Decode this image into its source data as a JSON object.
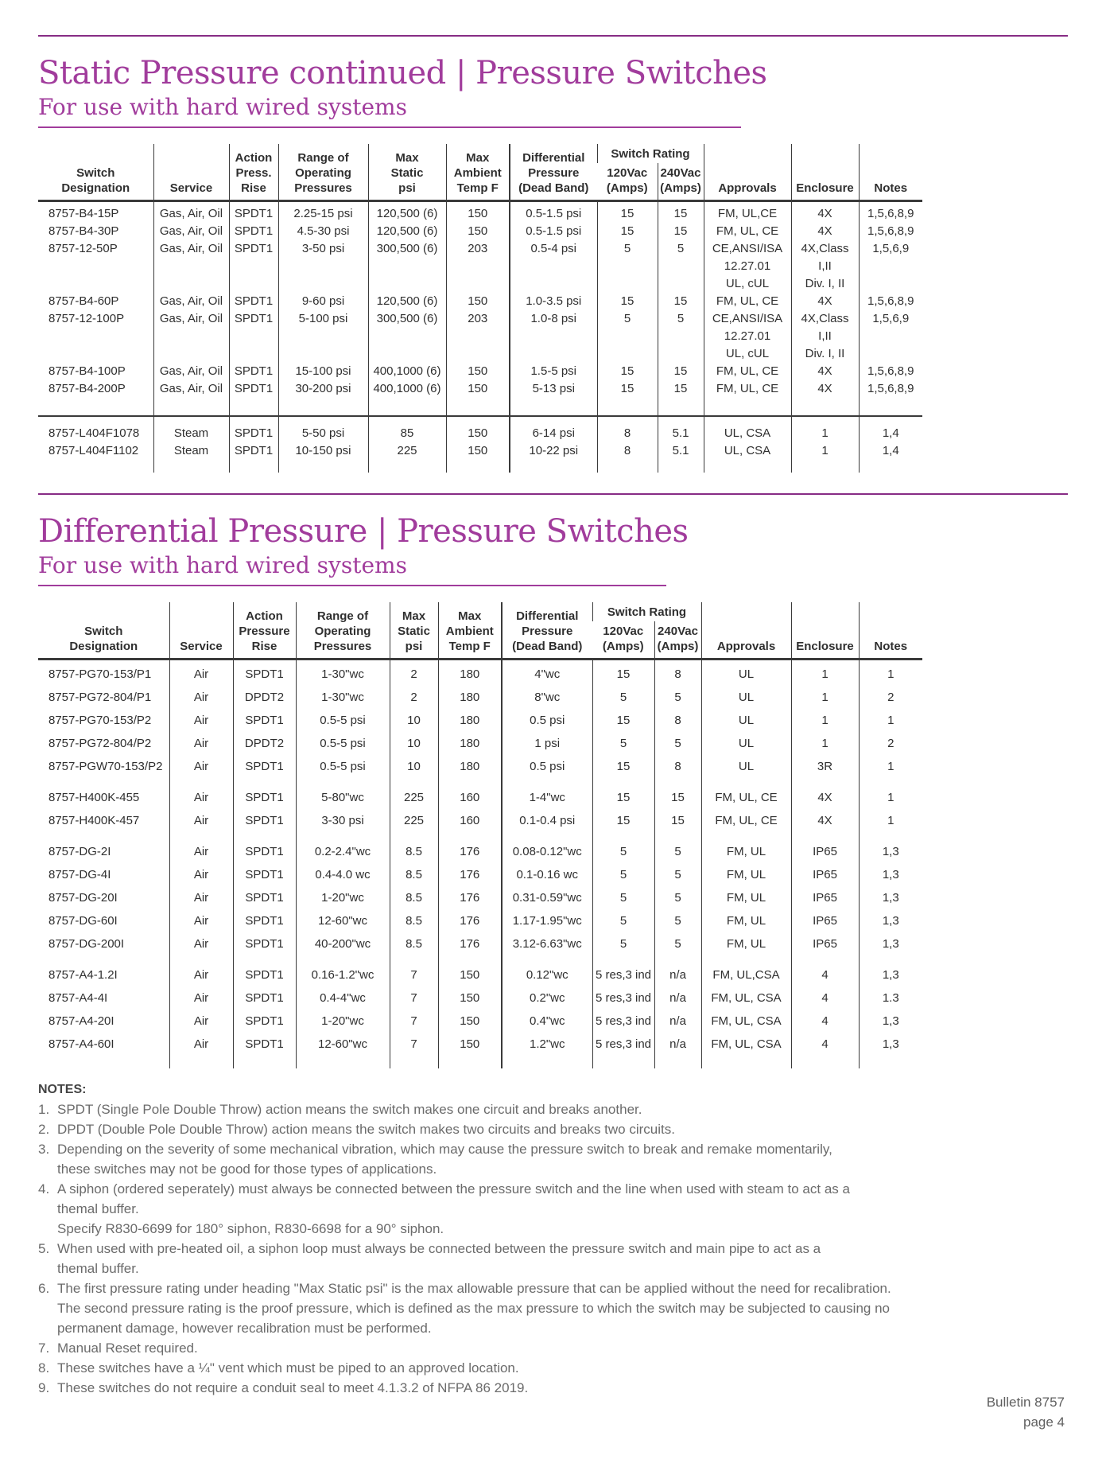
{
  "page": {
    "section1": {
      "title": "Static Pressure continued | Pressure Switches",
      "subtitle": "For use with hard wired systems"
    },
    "section2": {
      "title": "Differential Pressure | Pressure Switches",
      "subtitle": "For use with hard wired systems"
    },
    "footer": {
      "bulletin": "Bulletin 8757",
      "page": "page 4"
    },
    "colors": {
      "accent": "#a13c9c",
      "rule": "#872c85",
      "table_line": "#3a3a3a"
    }
  },
  "table1": {
    "headers": {
      "switch_designation": "Switch\nDesignation",
      "service": "Service",
      "action": "Action\nPress.\nRise",
      "range": "Range of\nOperating\nPressures",
      "max_static": "Max\nStatic\npsi",
      "max_ambient": "Max\nAmbient\nTemp F",
      "diff_pressure": "Differential\nPressure\n(Dead Band)",
      "switch_rating": "Switch Rating",
      "v120": "120Vac\n(Amps)",
      "v240": "240Vac\n(Amps)",
      "approvals": "Approvals",
      "enclosure": "Enclosure",
      "notes": "Notes"
    },
    "blocks": [
      {
        "pad_bottom": true,
        "rows": [
          [
            "8757-B4-15P",
            "Gas, Air, Oil",
            "SPDT1",
            "2.25-15 psi",
            "120,500 (6)",
            "150",
            "0.5-1.5 psi",
            "15",
            "15",
            "FM, UL,CE",
            "4X",
            "1,5,6,8,9"
          ],
          [
            "8757-B4-30P",
            "Gas, Air, Oil",
            "SPDT1",
            "4.5-30 psi",
            "120,500 (6)",
            "150",
            "0.5-1.5 psi",
            "15",
            "15",
            "FM, UL, CE",
            "4X",
            "1,5,6,8,9"
          ],
          [
            "8757-12-50P",
            "Gas, Air, Oil",
            "SPDT1",
            "3-50 psi",
            "300,500 (6)",
            "203",
            "0.5-4 psi",
            "5",
            "5",
            "CE,ANSI/ISA\n12.27.01\nUL, cUL",
            "4X,Class I,II\nDiv. I, II",
            "1,5,6,9"
          ],
          [
            "8757-B4-60P",
            "Gas, Air, Oil",
            "SPDT1",
            "9-60 psi",
            "120,500 (6)",
            "150",
            "1.0-3.5 psi",
            "15",
            "15",
            "FM, UL, CE",
            "4X",
            "1,5,6,8,9"
          ],
          [
            "8757-12-100P",
            "Gas, Air, Oil",
            "SPDT1",
            "5-100 psi",
            "300,500 (6)",
            "203",
            "1.0-8 psi",
            "5",
            "5",
            "CE,ANSI/ISA\n12.27.01\nUL, cUL",
            "4X,Class I,II\nDiv. I, II",
            "1,5,6,9"
          ],
          [
            "8757-B4-100P",
            "Gas, Air, Oil",
            "SPDT1",
            "15-100  psi",
            "400,1000 (6)",
            "150",
            "1.5-5 psi",
            "15",
            "15",
            "FM, UL, CE",
            "4X",
            "1,5,6,8,9"
          ],
          [
            "8757-B4-200P",
            "Gas, Air, Oil",
            "SPDT1",
            "30-200 psi",
            "400,1000 (6)",
            "150",
            "5-13 psi",
            "15",
            "15",
            "FM, UL, CE",
            "4X",
            "1,5,6,8,9"
          ]
        ]
      },
      {
        "separator": true,
        "rows": [
          [
            "8757-L404F1078",
            "Steam",
            "SPDT1",
            "5-50 psi",
            "85",
            "150",
            "6-14 psi",
            "8",
            "5.1",
            "UL, CSA",
            "1",
            "1,4"
          ],
          [
            "8757-L404F1102",
            "Steam",
            "SPDT1",
            "10-150 psi",
            "225",
            "150",
            "10-22 psi",
            "8",
            "5.1",
            "UL, CSA",
            "1",
            "1,4"
          ]
        ]
      }
    ]
  },
  "table2": {
    "headers": {
      "switch_designation": "Switch\nDesignation",
      "service": "Service",
      "action": "Action\nPressure\nRise",
      "range": "Range of\nOperating\nPressures",
      "max_static": "Max\nStatic\npsi",
      "max_ambient": "Max\nAmbient\nTemp F",
      "diff_pressure": "Differential\nPressure\n(Dead Band)",
      "switch_rating": "Switch Rating",
      "v120": "120Vac\n(Amps)",
      "v240": "240Vac\n(Amps)",
      "approvals": "Approvals",
      "enclosure": "Enclosure",
      "notes": "Notes"
    },
    "blocks": [
      {
        "rows": [
          [
            "8757-PG70-153/P1",
            "Air",
            "SPDT1",
            "1-30\"wc",
            "2",
            "180",
            "4\"wc",
            "15",
            "8",
            "UL",
            "1",
            "1"
          ],
          [
            "8757-PG72-804/P1",
            "Air",
            "DPDT2",
            "1-30\"wc",
            "2",
            "180",
            "8\"wc",
            "5",
            "5",
            "UL",
            "1",
            "2"
          ],
          [
            "8757-PG70-153/P2",
            "Air",
            "SPDT1",
            "0.5-5 psi",
            "10",
            "180",
            "0.5 psi",
            "15",
            "8",
            "UL",
            "1",
            "1"
          ],
          [
            "8757-PG72-804/P2",
            "Air",
            "DPDT2",
            "0.5-5 psi",
            "10",
            "180",
            "1 psi",
            "5",
            "5",
            "UL",
            "1",
            "2"
          ],
          [
            "8757-PGW70-153/P2",
            "Air",
            "SPDT1",
            "0.5-5 psi",
            "10",
            "180",
            "0.5 psi",
            "15",
            "8",
            "UL",
            "3R",
            "1"
          ]
        ]
      },
      {
        "rows": [
          [
            "8757-H400K-455",
            "Air",
            "SPDT1",
            "5-80\"wc",
            "225",
            "160",
            "1-4\"wc",
            "15",
            "15",
            "FM, UL, CE",
            "4X",
            "1"
          ],
          [
            "8757-H400K-457",
            "Air",
            "SPDT1",
            "3-30 psi",
            "225",
            "160",
            "0.1-0.4 psi",
            "15",
            "15",
            "FM, UL, CE",
            "4X",
            "1"
          ]
        ]
      },
      {
        "rows": [
          [
            "8757-DG-2I",
            "Air",
            "SPDT1",
            "0.2-2.4\"wc",
            "8.5",
            "176",
            "0.08-0.12\"wc",
            "5",
            "5",
            "FM, UL",
            "IP65",
            "1,3"
          ],
          [
            "8757-DG-4I",
            "Air",
            "SPDT1",
            "0.4-4.0 wc",
            "8.5",
            "176",
            "0.1-0.16 wc",
            "5",
            "5",
            "FM, UL",
            "IP65",
            "1,3"
          ],
          [
            "8757-DG-20I",
            "Air",
            "SPDT1",
            "1-20\"wc",
            "8.5",
            "176",
            "0.31-0.59\"wc",
            "5",
            "5",
            "FM, UL",
            "IP65",
            "1,3"
          ],
          [
            "8757-DG-60I",
            "Air",
            "SPDT1",
            "12-60\"wc",
            "8.5",
            "176",
            "1.17-1.95\"wc",
            "5",
            "5",
            "FM, UL",
            "IP65",
            "1,3"
          ],
          [
            "8757-DG-200I",
            "Air",
            "SPDT1",
            "40-200\"wc",
            "8.5",
            "176",
            "3.12-6.63\"wc",
            "5",
            "5",
            "FM, UL",
            "IP65",
            "1,3"
          ]
        ]
      },
      {
        "rows": [
          [
            "8757-A4-1.2I",
            "Air",
            "SPDT1",
            "0.16-1.2\"wc",
            "7",
            "150",
            "0.12\"wc",
            "5 res,3 ind",
            "n/a",
            "FM, UL,CSA",
            "4",
            "1,3"
          ],
          [
            "8757-A4-4I",
            "Air",
            "SPDT1",
            "0.4-4\"wc",
            "7",
            "150",
            "0.2\"wc",
            "5 res,3 ind",
            "n/a",
            "FM, UL, CSA",
            "4",
            "1.3"
          ],
          [
            "8757-A4-20I",
            "Air",
            "SPDT1",
            "1-20\"wc",
            "7",
            "150",
            "0.4\"wc",
            "5 res,3 ind",
            "n/a",
            "FM, UL, CSA",
            "4",
            "1,3"
          ],
          [
            "8757-A4-60I",
            "Air",
            "SPDT1",
            "12-60\"wc",
            "7",
            "150",
            "1.2\"wc",
            "5 res,3 ind",
            "n/a",
            "FM, UL, CSA",
            "4",
            "1,3"
          ]
        ]
      }
    ]
  },
  "notes": {
    "heading": "NOTES:",
    "items": [
      {
        "num": "1.",
        "text": "SPDT (Single Pole Double Throw) action means the switch makes one circuit and breaks another."
      },
      {
        "num": "2.",
        "text": "DPDT (Double Pole Double Throw) action means the switch makes two circuits and breaks two circuits."
      },
      {
        "num": "3.",
        "text": "Depending on the severity of some mechanical vibration, which may cause the pressure switch to break and remake momentarily,\nthese switches may not be good for those types of applications."
      },
      {
        "num": "4.",
        "text": "A siphon (ordered seperately) must always be connected between the pressure switch and the line when used with steam to act as a\nthemal buffer.\nSpecify R830-6699 for 180° siphon, R830-6698 for a 90° siphon."
      },
      {
        "num": "5.",
        "text": "When used with pre-heated oil, a siphon loop must always be connected between the pressure switch and main pipe to act as a\nthemal buffer."
      },
      {
        "num": "6.",
        "text": "The first pressure rating under heading \"Max Static psi\" is the max allowable pressure that can be applied without the need for recalibration.\nThe second pressure rating is the proof pressure, which is defined as the max pressure to which the switch may be subjected to causing no\npermanent damage, however recalibration must be performed."
      },
      {
        "num": "7.",
        "text": "Manual Reset required."
      },
      {
        "num": "8.",
        "text": "These switches have a ¼\" vent which must be piped to an approved location."
      },
      {
        "num": "9.",
        "text": "These switches do not require a conduit seal to meet 4.1.3.2 of NFPA 86 2019."
      }
    ]
  }
}
